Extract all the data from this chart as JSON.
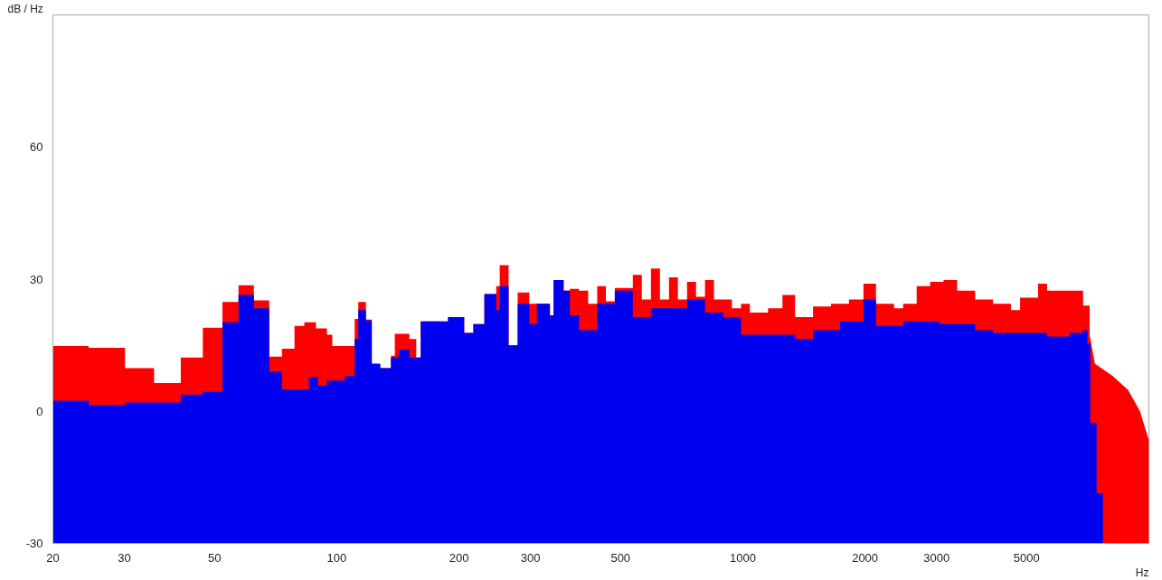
{
  "chart_data": {
    "type": "area",
    "xlabel": "Hz",
    "ylabel": "dB / Hz",
    "log": "x",
    "xlim": [
      20,
      10000
    ],
    "ylim": [
      -30,
      90
    ],
    "xticks": [
      20,
      30,
      50,
      100,
      200,
      300,
      500,
      1000,
      2000,
      3000,
      5000
    ],
    "yticks": [
      -30,
      0,
      30,
      60
    ],
    "series": [
      {
        "color": "#ff0000",
        "x": [
          20,
          20,
          24.5,
          24.5,
          30.1,
          30.1,
          35.5,
          35.5,
          41.3,
          41.3,
          46.8,
          46.8,
          52.3,
          52.3,
          57.3,
          57.3,
          62.5,
          62.5,
          68.2,
          68.2,
          73.3,
          73.3,
          78.7,
          78.7,
          83.2,
          83.2,
          88.9,
          88.9,
          94.6,
          94.6,
          97.5,
          97.5,
          110.7,
          110.7,
          113,
          113,
          118,
          118,
          122,
          122,
          128,
          128,
          136,
          136,
          139,
          139,
          151,
          151,
          157,
          157,
          161,
          161,
          188,
          188,
          206,
          206,
          217,
          217,
          231,
          231,
          247,
          247,
          252,
          252,
          265,
          265,
          279,
          279,
          298,
          298,
          335,
          335,
          342,
          342,
          362,
          362,
          375,
          375,
          395,
          395,
          416,
          416,
          438,
          438,
          460,
          460,
          484,
          484,
          536,
          536,
          564,
          564,
          594,
          594,
          625,
          625,
          658,
          658,
          692,
          692,
          729,
          729,
          767,
          767,
          807,
          807,
          849,
          849,
          940,
          940,
          990,
          990,
          1041,
          1041,
          1154,
          1154,
          1252,
          1252,
          1345,
          1345,
          1489,
          1489,
          1649,
          1649,
          1826,
          1826,
          1982,
          1982,
          2128,
          2128,
          2358,
          2358,
          2483,
          2483,
          2680,
          2680,
          2893,
          2893,
          3121,
          3121,
          3371,
          3371,
          3733,
          3733,
          4132,
          4132,
          4576,
          4576,
          4817,
          4817,
          5334,
          5334,
          5613,
          5613,
          6887,
          6887,
          7146,
          7146,
          7362,
          8150,
          8890,
          9510,
          10000,
          10000
        ],
        "values": [
          -30,
          14.8,
          14.8,
          14.4,
          14.4,
          9.8,
          9.8,
          6.4,
          6.4,
          12.2,
          12.2,
          19,
          19,
          24.8,
          24.8,
          28.6,
          28.6,
          25.2,
          25.2,
          12.4,
          12.4,
          14.2,
          14.2,
          19.4,
          19.4,
          20.2,
          20.2,
          18.8,
          18.8,
          17.4,
          17.4,
          14.8,
          14.8,
          21,
          21,
          24.8,
          24.8,
          20.8,
          20.8,
          10.6,
          10.6,
          9.8,
          9.8,
          12.6,
          12.6,
          17.6,
          17.6,
          16.4,
          16.4,
          12.2,
          12.2,
          20.4,
          20.4,
          21.4,
          21.4,
          17.8,
          17.8,
          19.8,
          19.8,
          26.6,
          26.6,
          28.4,
          28.4,
          33.2,
          33.2,
          15,
          15,
          27,
          27,
          24.4,
          24.4,
          21.8,
          21.8,
          29.8,
          29.8,
          27.4,
          27.4,
          27.8,
          27.8,
          27.4,
          27.4,
          24.4,
          24.4,
          28.4,
          28.4,
          25,
          25,
          28,
          28,
          31,
          31,
          25.4,
          25.4,
          32.4,
          32.4,
          25.4,
          25.4,
          30.4,
          30.4,
          25.4,
          25.4,
          29.4,
          29.4,
          26,
          26,
          29.8,
          29.8,
          25.4,
          25.4,
          23.4,
          23.4,
          24.4,
          24.4,
          22.4,
          22.4,
          23.4,
          23.4,
          26.4,
          26.4,
          21.4,
          21.4,
          23.8,
          23.8,
          24.4,
          24.4,
          25.4,
          25.4,
          29,
          29,
          24.4,
          24.4,
          23.4,
          23.4,
          24.4,
          24.4,
          28.4,
          28.4,
          29.4,
          29.4,
          29.8,
          29.8,
          27.4,
          27.4,
          25.4,
          25.4,
          24.4,
          24.4,
          23,
          23,
          25.8,
          25.8,
          29,
          29,
          27.4,
          27.4,
          24,
          24,
          17.4,
          10.8,
          8,
          4.8,
          0,
          -6.6,
          -30
        ]
      },
      {
        "color": "#0000f0",
        "x": [
          20,
          20,
          24.5,
          24.5,
          30.1,
          30.1,
          41.3,
          41.3,
          46.8,
          46.8,
          52.3,
          52.3,
          57.3,
          57.3,
          62.5,
          62.5,
          68.2,
          68.2,
          73.3,
          73.3,
          85.4,
          85.4,
          89.9,
          89.9,
          94.6,
          94.6,
          104.7,
          104.7,
          110.7,
          110.7,
          113,
          113,
          118,
          118,
          122,
          122,
          128,
          128,
          136,
          136,
          142,
          142,
          151,
          151,
          161,
          161,
          188,
          188,
          206,
          206,
          217,
          217,
          231,
          231,
          247,
          247,
          252,
          252,
          265,
          265,
          279,
          279,
          298,
          298,
          311,
          311,
          335,
          335,
          342,
          342,
          362,
          362,
          375,
          375,
          395,
          395,
          438,
          438,
          484,
          484,
          536,
          536,
          594,
          594,
          729,
          729,
          807,
          807,
          894,
          894,
          990,
          990,
          1345,
          1345,
          1489,
          1489,
          1735,
          1735,
          1982,
          1982,
          2128,
          2128,
          2483,
          2483,
          3043,
          3043,
          3733,
          3733,
          4132,
          4132,
          5613,
          5613,
          6383,
          6383,
          6887,
          6887,
          7058,
          7058,
          7173,
          7173,
          7434,
          7434,
          7707,
          7707
        ],
        "values": [
          -30,
          2.4,
          2.4,
          1.4,
          1.4,
          2,
          2,
          3.8,
          3.8,
          4.4,
          4.4,
          20.2,
          20.2,
          26.4,
          26.4,
          23.4,
          23.4,
          9,
          9,
          5,
          5,
          7.8,
          7.8,
          5.8,
          5.8,
          7,
          7,
          8,
          8,
          16.4,
          16.4,
          23,
          23,
          20.6,
          20.6,
          10.8,
          10.8,
          9.8,
          9.8,
          12.2,
          12.2,
          14,
          14,
          12.2,
          12.2,
          20.4,
          20.4,
          21.4,
          21.4,
          17.8,
          17.8,
          19.8,
          19.8,
          26.6,
          26.6,
          23,
          23,
          28.4,
          28.4,
          15,
          15,
          24.4,
          24.4,
          19.8,
          19.8,
          24.4,
          24.4,
          21.8,
          21.8,
          29.8,
          29.8,
          27.4,
          27.4,
          21.8,
          21.8,
          18.4,
          18.4,
          24.4,
          24.4,
          27.4,
          27.4,
          21.4,
          21.4,
          23.4,
          23.4,
          25.4,
          25.4,
          22.4,
          22.4,
          21.4,
          21.4,
          17.4,
          17.4,
          16.4,
          16.4,
          18.4,
          18.4,
          20.4,
          20.4,
          25.4,
          25.4,
          19.4,
          19.4,
          20.4,
          20.4,
          19.8,
          19.8,
          18.4,
          18.4,
          17.8,
          17.8,
          17,
          17,
          17.8,
          17.8,
          18.4,
          18.4,
          15.4,
          15.4,
          -2.6,
          -2.6,
          -18.6,
          -18.6,
          -30
        ]
      }
    ]
  }
}
